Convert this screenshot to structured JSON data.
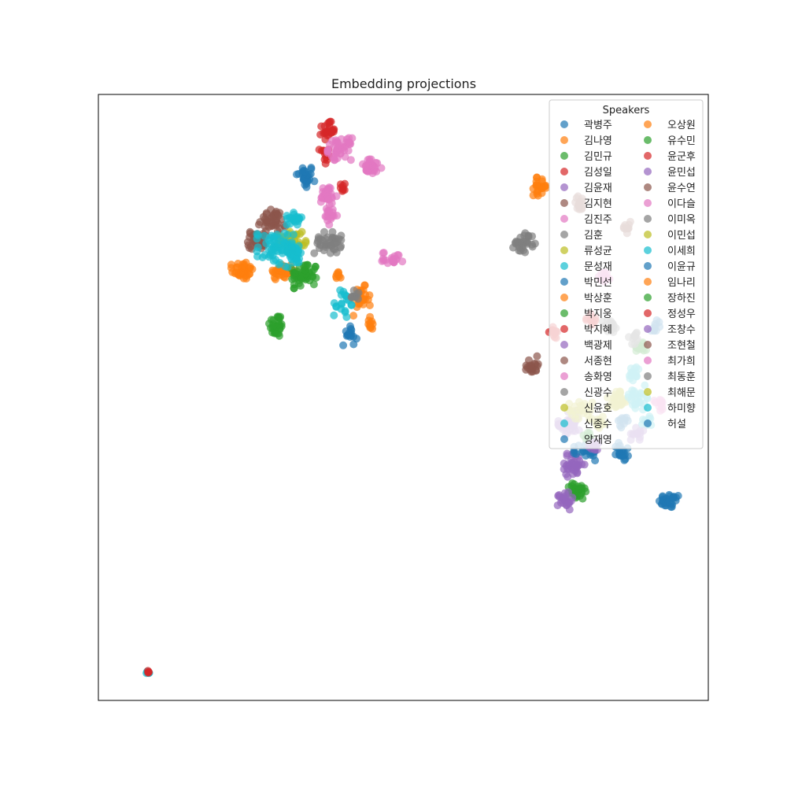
{
  "chart_data": {
    "type": "scatter",
    "title": "Embedding projections",
    "xlabel": "",
    "ylabel": "",
    "xlim": [
      0,
      1
    ],
    "ylim": [
      0,
      1
    ],
    "axis_ticks": false,
    "grid": false,
    "legend": {
      "title": "Speakers",
      "placement": "top-right",
      "columns": 2
    },
    "series": [
      {
        "name": "곽병주",
        "color": "#1f77b4",
        "clusters": [
          [
            0.339,
            0.864,
            0.015,
            0.02,
            30
          ],
          [
            0.937,
            0.329,
            0.018,
            0.012,
            30
          ]
        ]
      },
      {
        "name": "김나영",
        "color": "#ff7f0e",
        "clusters": [
          [
            0.236,
            0.71,
            0.018,
            0.016,
            40
          ],
          [
            0.301,
            0.708,
            0.02,
            0.015,
            40
          ]
        ]
      },
      {
        "name": "김민규",
        "color": "#2ca02c",
        "clusters": [
          [
            0.292,
            0.619,
            0.012,
            0.02,
            30
          ],
          [
            0.338,
            0.702,
            0.022,
            0.022,
            50
          ]
        ]
      },
      {
        "name": "김성일",
        "color": "#d62728",
        "clusters": [
          [
            0.376,
            0.94,
            0.012,
            0.015,
            25
          ],
          [
            0.37,
            0.9,
            0.008,
            0.015,
            12
          ]
        ]
      },
      {
        "name": "김윤재",
        "color": "#9467bd",
        "clusters": [
          [
            0.772,
            0.456,
            0.018,
            0.022,
            40
          ],
          [
            0.777,
            0.389,
            0.02,
            0.02,
            35
          ]
        ]
      },
      {
        "name": "김지현",
        "color": "#8c564b",
        "clusters": [
          [
            0.26,
            0.76,
            0.015,
            0.015,
            40
          ],
          [
            0.284,
            0.792,
            0.022,
            0.018,
            40
          ]
        ]
      },
      {
        "name": "김진주",
        "color": "#e377c2",
        "clusters": [
          [
            0.396,
            0.91,
            0.02,
            0.018,
            45
          ],
          [
            0.448,
            0.88,
            0.018,
            0.013,
            30
          ],
          [
            0.376,
            0.83,
            0.015,
            0.022,
            30
          ],
          [
            0.483,
            0.73,
            0.018,
            0.01,
            20
          ]
        ]
      },
      {
        "name": "김훈",
        "color": "#7f7f7f",
        "clusters": [
          [
            0.376,
            0.755,
            0.022,
            0.018,
            40
          ],
          [
            0.698,
            0.755,
            0.018,
            0.016,
            30
          ]
        ]
      },
      {
        "name": "류성균",
        "color": "#bcbd22",
        "clusters": [
          [
            0.318,
            0.76,
            0.022,
            0.018,
            40
          ]
        ]
      },
      {
        "name": "문성재",
        "color": "#17becf",
        "clusters": [
          [
            0.29,
            0.745,
            0.03,
            0.03,
            60
          ],
          [
            0.322,
            0.735,
            0.018,
            0.015,
            30
          ]
        ]
      },
      {
        "name": "박민선",
        "color": "#1f77b4",
        "clusters": [
          [
            0.412,
            0.606,
            0.012,
            0.02,
            15
          ]
        ]
      },
      {
        "name": "박상훈",
        "color": "#ff7f0e",
        "clusters": [
          [
            0.725,
            0.848,
            0.012,
            0.015,
            25
          ],
          [
            0.43,
            0.66,
            0.015,
            0.025,
            25
          ]
        ]
      },
      {
        "name": "박지웅",
        "color": "#2ca02c",
        "clusters": [
          [
            0.785,
            0.345,
            0.014,
            0.015,
            30
          ]
        ]
      },
      {
        "name": "박지혜",
        "color": "#d62728",
        "clusters": [
          [
            0.745,
            0.61,
            0.012,
            0.012,
            15
          ],
          [
            0.4,
            0.85,
            0.008,
            0.012,
            8
          ]
        ]
      },
      {
        "name": "백광제",
        "color": "#9467bd",
        "clusters": [
          [
            0.765,
            0.33,
            0.012,
            0.015,
            25
          ]
        ]
      },
      {
        "name": "서종현",
        "color": "#8c564b",
        "clusters": [
          [
            0.711,
            0.553,
            0.01,
            0.015,
            20
          ]
        ]
      },
      {
        "name": "송화영",
        "color": "#e377c2",
        "clusters": [
          [
            0.382,
            0.8,
            0.01,
            0.015,
            15
          ]
        ]
      },
      {
        "name": "신광수",
        "color": "#7f7f7f",
        "clusters": [
          [
            0.84,
            0.617,
            0.013,
            0.012,
            18
          ]
        ]
      },
      {
        "name": "신윤호",
        "color": "#bcbd22",
        "clusters": [
          [
            0.82,
            0.46,
            0.018,
            0.012,
            18
          ]
        ]
      },
      {
        "name": "신종수",
        "color": "#17becf",
        "clusters": [
          [
            0.4,
            0.655,
            0.015,
            0.025,
            20
          ],
          [
            0.0818,
            0.0455,
            0.003,
            0.003,
            6
          ]
        ]
      },
      {
        "name": "양재영",
        "color": "#1f77b4",
        "clusters": [
          [
            0.8,
            0.41,
            0.02,
            0.015,
            25
          ],
          [
            0.86,
            0.41,
            0.012,
            0.015,
            20
          ]
        ]
      },
      {
        "name": "오상원",
        "color": "#ff7f0e",
        "clusters": [
          [
            0.392,
            0.7,
            0.008,
            0.01,
            8
          ]
        ]
      },
      {
        "name": "유수민",
        "color": "#2ca02c",
        "clusters": [
          [
            0.802,
            0.435,
            0.01,
            0.01,
            10
          ]
        ]
      },
      {
        "name": "윤군후",
        "color": "#d62728",
        "clusters": [
          [
            0.0818,
            0.0468,
            0.002,
            0.002,
            4
          ]
        ]
      },
      {
        "name": "윤민섭",
        "color": "#9467bd",
        "clusters": [
          [
            0.814,
            0.42,
            0.012,
            0.01,
            12
          ]
        ]
      },
      {
        "name": "윤수연",
        "color": "#8c564b",
        "clusters": [
          [
            0.79,
            0.82,
            0.012,
            0.012,
            15
          ]
        ]
      },
      {
        "name": "이다슬",
        "color": "#e377c2",
        "clusters": [
          [
            0.83,
            0.7,
            0.01,
            0.01,
            10
          ]
        ]
      },
      {
        "name": "이미옥",
        "color": "#7f7f7f",
        "clusters": [
          [
            0.42,
            0.67,
            0.01,
            0.012,
            10
          ]
        ]
      },
      {
        "name": "이민섭",
        "color": "#bcbd22",
        "clusters": [
          [
            0.855,
            0.5,
            0.01,
            0.012,
            12
          ]
        ]
      },
      {
        "name": "이세희",
        "color": "#17becf",
        "clusters": [
          [
            0.88,
            0.54,
            0.012,
            0.012,
            14
          ],
          [
            0.9,
            0.46,
            0.01,
            0.01,
            10
          ]
        ]
      },
      {
        "name": "이윤규",
        "color": "#1f77b4",
        "clusters": [
          [
            0.86,
            0.46,
            0.01,
            0.01,
            10
          ]
        ]
      },
      {
        "name": "임나리",
        "color": "#ff7f0e",
        "clusters": [
          [
            0.445,
            0.625,
            0.01,
            0.015,
            10
          ]
        ]
      },
      {
        "name": "장하진",
        "color": "#2ca02c",
        "clusters": [
          [
            0.89,
            0.585,
            0.01,
            0.012,
            12
          ]
        ]
      },
      {
        "name": "정성우",
        "color": "#d62728",
        "clusters": [
          [
            0.81,
            0.63,
            0.01,
            0.01,
            10
          ]
        ]
      },
      {
        "name": "조창수",
        "color": "#9467bd",
        "clusters": [
          [
            0.885,
            0.44,
            0.012,
            0.01,
            12
          ]
        ]
      },
      {
        "name": "조현철",
        "color": "#8c564b",
        "clusters": [
          [
            0.865,
            0.78,
            0.01,
            0.01,
            10
          ]
        ]
      },
      {
        "name": "최가희",
        "color": "#e377c2",
        "clusters": [
          [
            0.92,
            0.49,
            0.01,
            0.012,
            12
          ]
        ]
      },
      {
        "name": "최동훈",
        "color": "#7f7f7f",
        "clusters": [
          [
            0.88,
            0.6,
            0.012,
            0.012,
            14
          ]
        ]
      },
      {
        "name": "최해문",
        "color": "#bcbd22",
        "clusters": [
          [
            0.79,
            0.48,
            0.02,
            0.015,
            22
          ],
          [
            0.85,
            0.49,
            0.015,
            0.012,
            18
          ]
        ]
      },
      {
        "name": "하미향",
        "color": "#17becf",
        "clusters": [
          [
            0.322,
            0.795,
            0.013,
            0.01,
            20
          ],
          [
            0.885,
            0.5,
            0.02,
            0.02,
            25
          ]
        ]
      },
      {
        "name": "허설",
        "color": "#1f77b4",
        "clusters": [
          [
            0.915,
            0.62,
            0.01,
            0.01,
            10
          ]
        ]
      }
    ]
  }
}
